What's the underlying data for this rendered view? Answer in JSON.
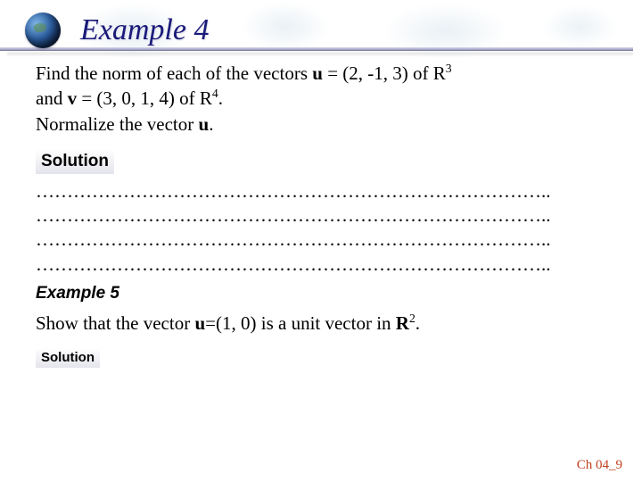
{
  "header": {
    "title": "Example 4",
    "title_color": "#1a1a7a",
    "title_fontsize": 34
  },
  "problem": {
    "line1_a": "Find the norm of each of  the vectors ",
    "line1_b": "u",
    "line1_c": " = (2, -1, 3) of  R",
    "line1_sup": "3",
    "line2_a": "and ",
    "line2_b": "v",
    "line2_c": " = (3, 0, 1, 4) of  R",
    "line2_sup": "4",
    "line2_d": ".",
    "line3_a": "Normalize the vector ",
    "line3_b": "u",
    "line3_c": "."
  },
  "labels": {
    "solution": "Solution",
    "example5": "Example 5",
    "solution2": "Solution"
  },
  "dots": {
    "row": "………………………………………………………………………..",
    "count": 4
  },
  "problem2": {
    "a": "Show that the vector ",
    "b": "u",
    "c": "=(1, 0) is a unit vector in ",
    "d": "R",
    "sup": "2",
    "e": "."
  },
  "footer": {
    "text": "Ch 04_9",
    "color": "#c04020"
  }
}
